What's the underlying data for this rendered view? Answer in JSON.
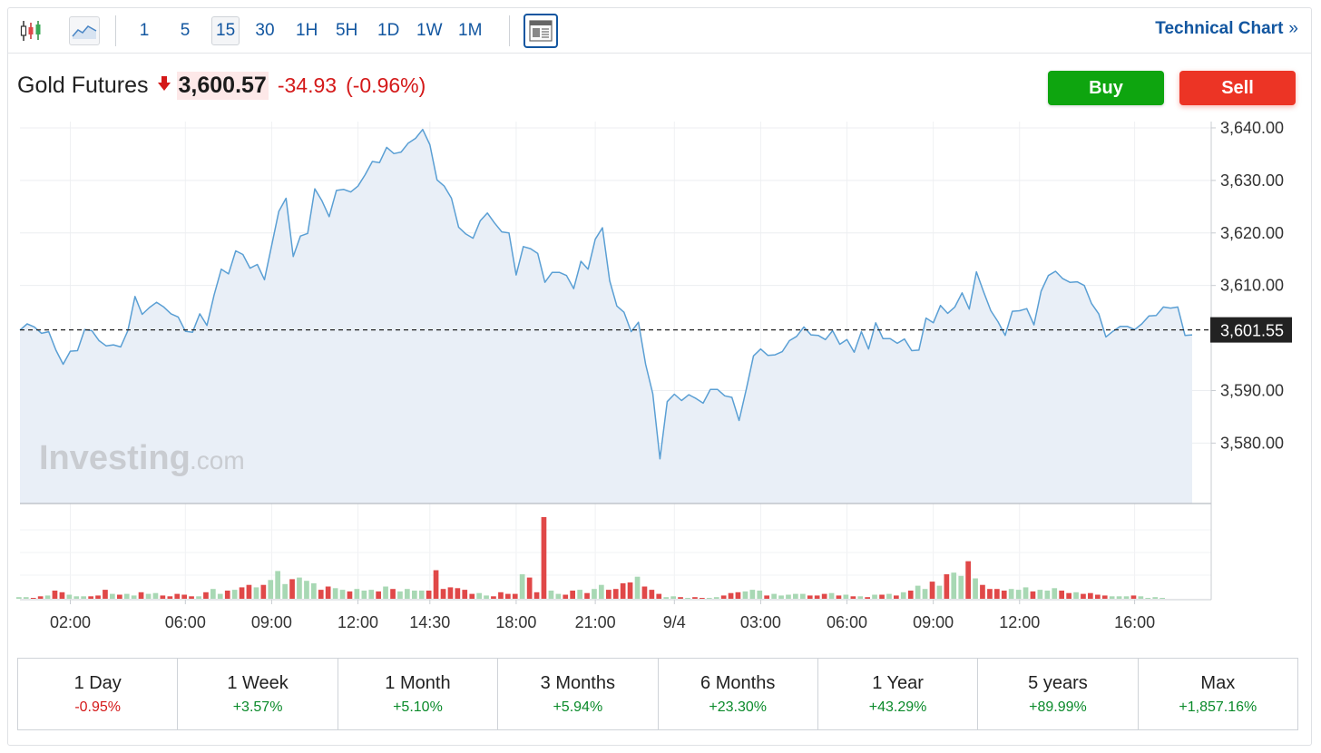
{
  "toolbar": {
    "timeframes": [
      "1",
      "5",
      "15",
      "30",
      "1H",
      "5H",
      "1D",
      "1W",
      "1M"
    ],
    "active_timeframe": "15",
    "technical_chart_label": "Technical Chart",
    "technical_chart_chevron": "»",
    "icons": [
      "candlestick-icon",
      "area-chart-icon",
      "layout-icon"
    ]
  },
  "quote": {
    "name": "Gold Futures",
    "price": "3,600.57",
    "change": "-34.93",
    "change_pct": "(-0.96%)",
    "direction": "down"
  },
  "actions": {
    "buy_label": "Buy",
    "sell_label": "Sell"
  },
  "chart_data": {
    "type": "area",
    "price_series": [
      3601.5,
      3602.7,
      3602.1,
      3600.9,
      3601.2,
      3597.7,
      3595.0,
      3597.5,
      3597.6,
      3601.6,
      3601.4,
      3599.5,
      3598.5,
      3598.7,
      3598.3,
      3601.4,
      3607.9,
      3604.5,
      3605.8,
      3606.8,
      3605.9,
      3604.6,
      3604.0,
      3601.3,
      3601.1,
      3604.6,
      3602.4,
      3608.2,
      3613.1,
      3612.2,
      3616.6,
      3615.9,
      3613.3,
      3614.0,
      3611.1,
      3617.6,
      3624.1,
      3626.6,
      3615.5,
      3619.4,
      3619.9,
      3628.4,
      3626.1,
      3623.1,
      3628.1,
      3628.3,
      3627.8,
      3628.9,
      3631.1,
      3633.6,
      3633.4,
      3636.3,
      3635.1,
      3635.4,
      3637.1,
      3638.0,
      3639.7,
      3636.8,
      3630.1,
      3628.9,
      3626.6,
      3621.1,
      3619.8,
      3619.0,
      3622.3,
      3623.8,
      3621.9,
      3620.2,
      3620.0,
      3612.0,
      3617.4,
      3617.0,
      3616.1,
      3610.6,
      3612.5,
      3612.5,
      3611.9,
      3609.4,
      3614.6,
      3613.1,
      3618.8,
      3621.0,
      3610.9,
      3606.1,
      3604.9,
      3601.2,
      3603.0,
      3595.0,
      3589.4,
      3577.0,
      3587.9,
      3589.3,
      3588.1,
      3589.2,
      3588.5,
      3587.6,
      3590.2,
      3590.2,
      3589.0,
      3588.7,
      3584.3,
      3590.3,
      3596.6,
      3597.9,
      3596.7,
      3596.8,
      3597.4,
      3599.5,
      3600.3,
      3602.1,
      3600.6,
      3600.5,
      3599.7,
      3601.4,
      3598.8,
      3599.7,
      3597.3,
      3601.2,
      3597.9,
      3602.9,
      3599.9,
      3599.9,
      3599.0,
      3599.8,
      3597.6,
      3597.7,
      3603.8,
      3602.9,
      3606.2,
      3604.7,
      3605.9,
      3608.6,
      3605.5,
      3612.6,
      3608.8,
      3605.2,
      3603.1,
      3600.5,
      3605.1,
      3605.2,
      3605.6,
      3602.5,
      3608.9,
      3611.9,
      3612.7,
      3611.3,
      3610.6,
      3610.7,
      3610.0,
      3606.6,
      3604.6,
      3600.2,
      3601.3,
      3602.2,
      3602.2,
      3601.6,
      3602.7,
      3604.2,
      3604.3,
      3605.9,
      3605.7,
      3605.9,
      3600.5,
      3600.6
    ],
    "volume_series": [
      2,
      2,
      1,
      3,
      4,
      10,
      8,
      5,
      3,
      3,
      3,
      4,
      11,
      6,
      5,
      6,
      4,
      8,
      6,
      7,
      4,
      3,
      6,
      5,
      3,
      3,
      8,
      12,
      6,
      10,
      11,
      14,
      17,
      14,
      17,
      23,
      34,
      18,
      24,
      26,
      22,
      19,
      11,
      15,
      13,
      11,
      9,
      12,
      10,
      11,
      9,
      15,
      12,
      9,
      12,
      10,
      10,
      10,
      35,
      12,
      14,
      13,
      11,
      6,
      7,
      4,
      3,
      8,
      6,
      6,
      30,
      26,
      8,
      100,
      10,
      6,
      5,
      10,
      11,
      7,
      12,
      17,
      11,
      12,
      19,
      20,
      27,
      15,
      11,
      6,
      2,
      3,
      2,
      1,
      2,
      1,
      1,
      2,
      4,
      7,
      8,
      9,
      11,
      10,
      4,
      6,
      4,
      5,
      6,
      6,
      4,
      4,
      6,
      7,
      4,
      5,
      3,
      3,
      2,
      5,
      5,
      6,
      4,
      8,
      10,
      16,
      12,
      21,
      16,
      30,
      32,
      28,
      46,
      25,
      17,
      12,
      12,
      10,
      12,
      11,
      14,
      9,
      11,
      10,
      13,
      10,
      7,
      8,
      6,
      7,
      5,
      4,
      3,
      3,
      3,
      4,
      3,
      1,
      2,
      1
    ],
    "y_ticks": [
      "3,640.00",
      "3,630.00",
      "3,620.00",
      "3,610.00",
      "3,590.00",
      "3,580.00"
    ],
    "y_tick_values": [
      3640,
      3630,
      3620,
      3610,
      3590,
      3580
    ],
    "ylim": [
      3568.5,
      3641.2
    ],
    "x_ticks": [
      "02:00",
      "06:00",
      "09:00",
      "12:00",
      "14:30",
      "18:00",
      "21:00",
      "9/4",
      "03:00",
      "06:00",
      "09:00",
      "12:00",
      "16:00"
    ],
    "x_tick_index": [
      7,
      23,
      35,
      47,
      57,
      69,
      80,
      91,
      103,
      115,
      127,
      139,
      155
    ],
    "reference_price": 3601.55,
    "reference_label": "3,601.55",
    "watermark": "Investing",
    "watermark_suffix": ".com",
    "line_color": "#5a9fd4",
    "fill_color": "#e9eff7",
    "up_volume_color": "#a8d8b4",
    "down_volume_color": "#e04848"
  },
  "performance": [
    {
      "label": "1 Day",
      "value": "-0.95%",
      "sign": "neg"
    },
    {
      "label": "1 Week",
      "value": "+3.57%",
      "sign": "pos"
    },
    {
      "label": "1 Month",
      "value": "+5.10%",
      "sign": "pos"
    },
    {
      "label": "3 Months",
      "value": "+5.94%",
      "sign": "pos"
    },
    {
      "label": "6 Months",
      "value": "+23.30%",
      "sign": "pos"
    },
    {
      "label": "1 Year",
      "value": "+43.29%",
      "sign": "pos"
    },
    {
      "label": "5 years",
      "value": "+89.99%",
      "sign": "pos"
    },
    {
      "label": "Max",
      "value": "+1,857.16%",
      "sign": "pos"
    }
  ]
}
